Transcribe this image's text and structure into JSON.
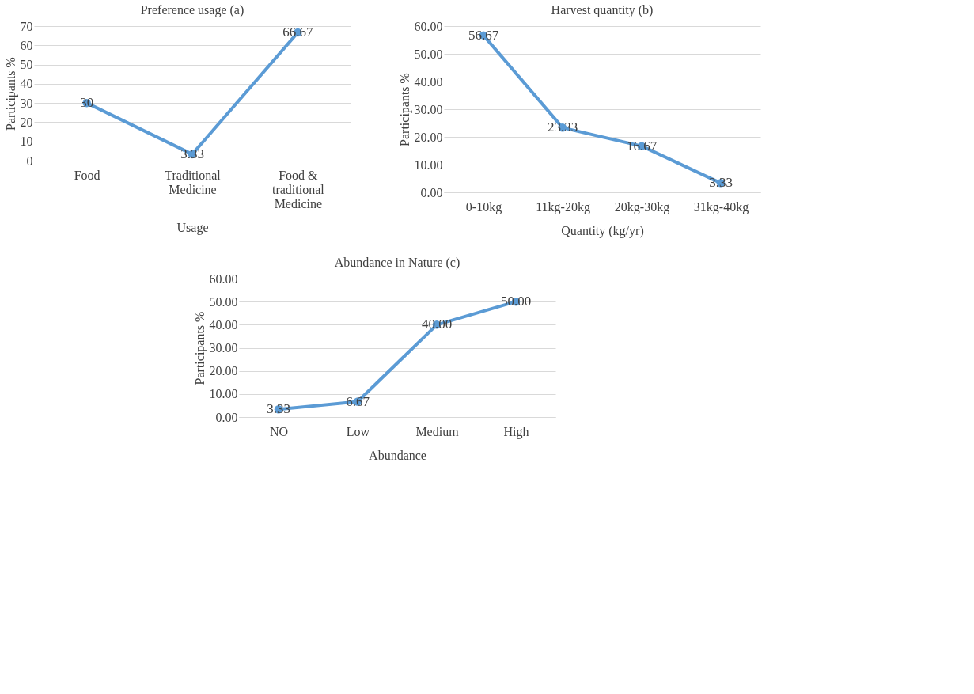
{
  "chart_data": [
    {
      "type": "line",
      "title": "Preference usage (a)",
      "xlabel": "Usage",
      "ylabel": "Participants %",
      "categories": [
        "Food",
        "Traditional Medicine",
        "Food & traditional Medicine"
      ],
      "series": [
        {
          "color": "#5b9bd5",
          "values": [
            30,
            3.33,
            66.67
          ],
          "value_labels": [
            "30",
            "3.33",
            "66.67"
          ]
        }
      ],
      "ylim": [
        0,
        70
      ],
      "yticks": [
        0,
        10,
        20,
        30,
        40,
        50,
        60,
        70
      ],
      "grid": "y",
      "marker": "circle",
      "line_style": "solid"
    },
    {
      "type": "line",
      "title": "Harvest quantity (b)",
      "xlabel": "Quantity (kg/yr)",
      "ylabel": "Participants %",
      "categories": [
        "0-10kg",
        "11kg-20kg",
        "20kg-30kg",
        "31kg-40kg"
      ],
      "series": [
        {
          "color": "#5b9bd5",
          "values": [
            56.67,
            23.33,
            16.67,
            3.33
          ],
          "value_labels": [
            "56.67",
            "23.33",
            "16.67",
            "3.33"
          ]
        }
      ],
      "ylim": [
        0,
        60
      ],
      "yticks": [
        {
          "value": 0,
          "label": "0.00"
        },
        {
          "value": 10,
          "label": "10.00"
        },
        {
          "value": 20,
          "label": "20.00"
        },
        {
          "value": 30,
          "label": "30.00"
        },
        {
          "value": 40,
          "label": "40.00"
        },
        {
          "value": 50,
          "label": "50.00"
        },
        {
          "value": 60,
          "label": "60.00"
        }
      ],
      "grid": "y",
      "marker": "circle",
      "line_style": "solid"
    },
    {
      "type": "line",
      "title": "Abundance in Nature (c)",
      "xlabel": "Abundance",
      "ylabel": "Participants %",
      "categories": [
        "NO",
        "Low",
        "Medium",
        "High"
      ],
      "series": [
        {
          "color": "#5b9bd5",
          "values": [
            3.33,
            6.67,
            40,
            50
          ],
          "value_labels": [
            "3.33",
            "6.67",
            "40.00",
            "50.00"
          ]
        }
      ],
      "ylim": [
        0,
        60
      ],
      "yticks": [
        {
          "value": 0,
          "label": "0.00"
        },
        {
          "value": 10,
          "label": "10.00"
        },
        {
          "value": 20,
          "label": "20.00"
        },
        {
          "value": 30,
          "label": "30.00"
        },
        {
          "value": 40,
          "label": "40.00"
        },
        {
          "value": 50,
          "label": "50.00"
        },
        {
          "value": 60,
          "label": "60.00"
        }
      ],
      "grid": "y",
      "marker": "circle",
      "line_style": "solid"
    }
  ]
}
